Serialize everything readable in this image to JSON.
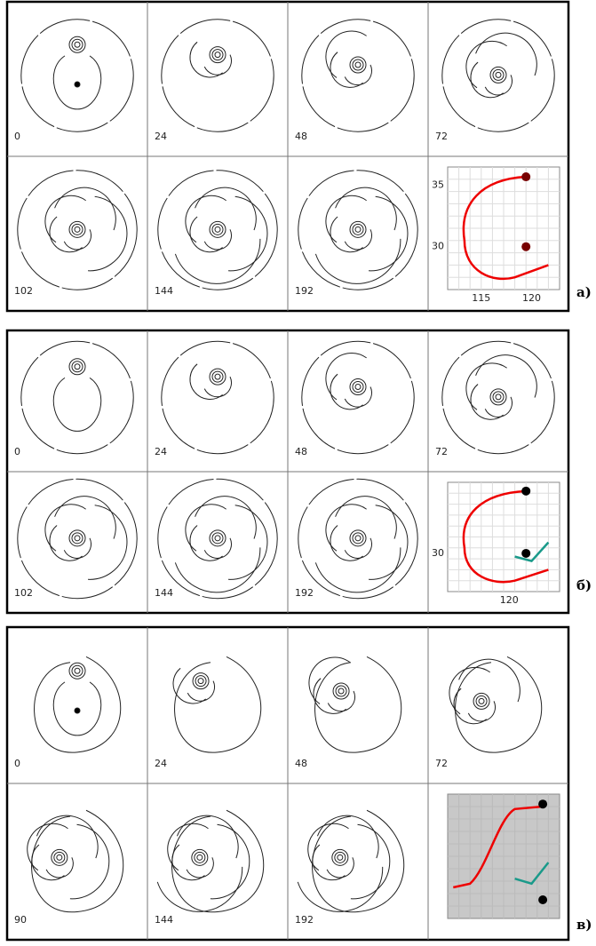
{
  "panels": [
    {
      "label": "а)",
      "cells": [
        "0",
        "24",
        "48",
        "72",
        "102",
        "144",
        "192"
      ],
      "track": {
        "yticks": [
          "35",
          "30"
        ],
        "xticks": [
          "115",
          "120"
        ]
      }
    },
    {
      "label": "б)",
      "cells": [
        "0",
        "24",
        "48",
        "72",
        "102",
        "144",
        "192"
      ],
      "track": {
        "yticks": [
          "30"
        ],
        "xticks": [
          "120"
        ]
      }
    },
    {
      "label": "в)",
      "cells": [
        "0",
        "24",
        "48",
        "72",
        "90",
        "144",
        "192"
      ]
    }
  ]
}
